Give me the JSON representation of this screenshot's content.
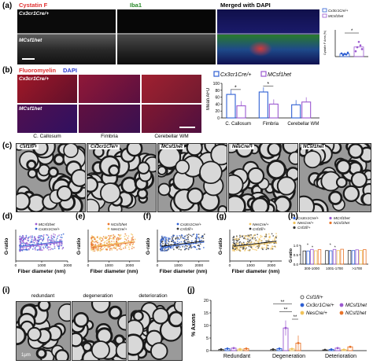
{
  "panel_a": {
    "label": "(a)",
    "headers": {
      "cystatin": "Cystatin F",
      "iba1": "Iba1",
      "merged": "Merged with DAPI"
    },
    "row_labels": [
      "Cx3cr1Cre/+",
      "MCsf1het"
    ],
    "legend": [
      "Cx3cr1Cre/+",
      "MCsf1het"
    ]
  },
  "panel_b": {
    "label": "(b)",
    "header_stain": "Fluoromyelin",
    "header_dapi": "DAPI",
    "row_labels": [
      "Cx3cr1Cre/+",
      "MCsf1het"
    ],
    "col_captions": [
      "C. Callosum",
      "Fimbria",
      "Cerebellar WM"
    ],
    "legend": [
      "Cx3cr1Cre/+",
      "MCsf1het"
    ]
  },
  "panel_c": {
    "label": "(c)",
    "em_labels": [
      "Csf1fl/+",
      "Cx3cr1Cre/+",
      "MCsf1het",
      "NesCre/+",
      "NCsf1het"
    ]
  },
  "panels_scatter": [
    {
      "label": "(d)",
      "legend": [
        "MCsf1het",
        "Cx3cr1Cre/+"
      ]
    },
    {
      "label": "(e)",
      "legend": [
        "NCsf1het",
        "NesCre/+"
      ]
    },
    {
      "label": "(f)",
      "legend": [
        "Cx3cr1Cre/+",
        "Csf1fl/+"
      ]
    },
    {
      "label": "(g)",
      "legend": [
        "NesCre/+",
        "Csf1fl/+"
      ]
    }
  ],
  "panel_h": {
    "label": "(h)",
    "legend": [
      "Cx3cr1Cre/+",
      "MCsf1het",
      "NesCre/+",
      "NCsf1het",
      "Csf1fl/+"
    ],
    "xcats": [
      "300-1000",
      "1001-1700",
      ">1700"
    ]
  },
  "panel_i": {
    "label": "(i)",
    "captions": [
      "redundant",
      "degeneration",
      "deterioration"
    ],
    "scale": "1μm"
  },
  "panel_j": {
    "label": "(j)",
    "legend": [
      "Csf1fl/+",
      "Cx3cr1Cre/+",
      "NesCre/+",
      "MCsf1het",
      "NCsf1het"
    ]
  },
  "chart_data": [
    {
      "type": "scatter",
      "title": "(a) Cystatin F area",
      "ylabel": "Cystatin F Area (%)",
      "ylim": [
        0,
        10
      ],
      "series": [
        {
          "name": "Cx3cr1Cre/+",
          "values": [
            1.2,
            0.6,
            1.0,
            0.8,
            1.5
          ]
        },
        {
          "name": "MCsf1het",
          "values": [
            2.0,
            3.5,
            5.5,
            4.2,
            2.8
          ]
        }
      ],
      "categories": [
        "Cx3cr1Cre/+",
        "MCsf1het"
      ],
      "annotations": [
        "*"
      ]
    },
    {
      "type": "bar",
      "title": "(b) Fluoromyelin",
      "ylabel": "Mean AFU",
      "ylim": [
        0,
        100
      ],
      "yticks": [
        0,
        20,
        40,
        60,
        80,
        100
      ],
      "categories": [
        "C. Callosum",
        "Fimbria",
        "Cerebellar WM"
      ],
      "series": [
        {
          "name": "Cx3cr1Cre/+",
          "values": [
            68,
            75,
            38
          ]
        },
        {
          "name": "MCsf1het",
          "values": [
            35,
            40,
            46
          ]
        }
      ],
      "annotations": [
        "*",
        "*"
      ]
    },
    {
      "type": "scatter",
      "title": "(d)",
      "xlabel": "Fiber diameter (nm)",
      "ylabel": "G-ratio",
      "xlim": [
        0,
        2000
      ],
      "ylim": [
        0.4,
        1.0
      ],
      "xticks": [
        0,
        1000,
        2000
      ],
      "series": [
        {
          "name": "MCsf1het",
          "color": "#9b59d0"
        },
        {
          "name": "Cx3cr1Cre/+",
          "color": "#2e5fd3"
        }
      ]
    },
    {
      "type": "scatter",
      "title": "(e)",
      "xlabel": "Fiber diameter (nm)",
      "ylabel": "G-ratio",
      "xlim": [
        0,
        2500
      ],
      "ylim": [
        0.4,
        1.0
      ],
      "xticks": [
        0,
        1000,
        2000
      ],
      "series": [
        {
          "name": "NCsf1het",
          "color": "#e8742a"
        },
        {
          "name": "NesCre/+",
          "color": "#f0c25a"
        }
      ]
    },
    {
      "type": "scatter",
      "title": "(f)",
      "xlabel": "Fiber diameter (nm)",
      "ylabel": "G-ratio",
      "xlim": [
        0,
        2500
      ],
      "ylim": [
        0.4,
        1.0
      ],
      "xticks": [
        0,
        1000,
        2000
      ],
      "series": [
        {
          "name": "Cx3cr1Cre/+",
          "color": "#2e5fd3"
        },
        {
          "name": "Csf1fl/+",
          "color": "#333333"
        }
      ]
    },
    {
      "type": "scatter",
      "title": "(g)",
      "xlabel": "Fiber diameter (nm)",
      "ylabel": "G-ratio",
      "xlim": [
        0,
        2500
      ],
      "ylim": [
        0.4,
        1.0
      ],
      "xticks": [
        0,
        1000,
        2000
      ],
      "series": [
        {
          "name": "NesCre/+",
          "color": "#f0c25a"
        },
        {
          "name": "Csf1fl/+",
          "color": "#333333"
        }
      ]
    },
    {
      "type": "bar",
      "title": "(h)",
      "ylabel": "G-ratio",
      "ylim": [
        0.0,
        1.0
      ],
      "yticks": [
        0.0,
        0.5,
        1.0
      ],
      "categories": [
        "300-1000",
        "1001-1700",
        ">1700"
      ],
      "series": [
        {
          "name": "Csf1fl/+",
          "color": "#333333",
          "values": [
            0.7,
            0.72,
            0.73
          ]
        },
        {
          "name": "Cx3cr1Cre/+",
          "color": "#2e5fd3",
          "values": [
            0.7,
            0.71,
            0.72
          ]
        },
        {
          "name": "MCsf1het",
          "color": "#9b59d0",
          "values": [
            0.78,
            0.78,
            0.76
          ]
        },
        {
          "name": "NesCre/+",
          "color": "#f0c25a",
          "values": [
            0.71,
            0.72,
            0.73
          ]
        },
        {
          "name": "NCsf1het",
          "color": "#e8742a",
          "values": [
            0.77,
            0.79,
            0.77
          ]
        }
      ],
      "annotations": [
        "*",
        "*",
        "*",
        "*"
      ]
    },
    {
      "type": "bar",
      "title": "(j)",
      "ylabel": "% Axons",
      "ylim": [
        0,
        20
      ],
      "yticks": [
        0,
        5,
        10,
        15,
        20
      ],
      "categories": [
        "Redundant",
        "Degeneration",
        "Deterioration"
      ],
      "series": [
        {
          "name": "Csf1fl/+",
          "color": "#333333",
          "values": [
            0.5,
            0.5,
            0.3
          ]
        },
        {
          "name": "Cx3cr1Cre/+",
          "color": "#2e5fd3",
          "values": [
            0.8,
            0.8,
            0.5
          ]
        },
        {
          "name": "MCsf1het",
          "color": "#9b59d0",
          "values": [
            1.0,
            9.0,
            1.0
          ]
        },
        {
          "name": "NesCre/+",
          "color": "#f0c25a",
          "values": [
            0.6,
            0.7,
            0.4
          ]
        },
        {
          "name": "NCsf1het",
          "color": "#e8742a",
          "values": [
            0.8,
            3.0,
            1.5
          ]
        }
      ],
      "annotations": [
        "**",
        "**",
        "**"
      ]
    }
  ]
}
